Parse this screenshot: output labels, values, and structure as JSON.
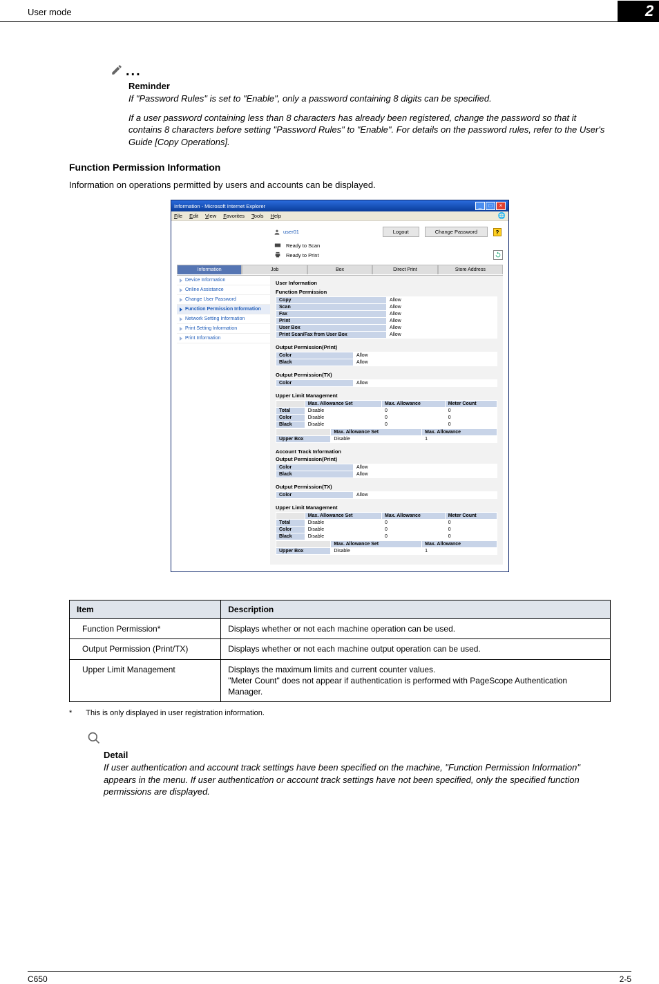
{
  "header": {
    "section": "User mode",
    "chapter": "2"
  },
  "reminder": {
    "label": "Reminder",
    "p1": "If \"Password Rules\" is set to \"Enable\", only a password containing 8 digits can be specified.",
    "p2": "If a user password containing less than 8 characters has already been registered, change the password so that it contains 8 characters before setting \"Password Rules\" to \"Enable\". For details on the password rules, refer to the User's Guide [Copy Operations]."
  },
  "section": {
    "title": "Function Permission Information",
    "intro": "Information on operations permitted by users and accounts can be displayed."
  },
  "ie": {
    "title": "Information - Microsoft Internet Explorer",
    "menu": [
      "File",
      "Edit",
      "View",
      "Favorites",
      "Tools",
      "Help"
    ],
    "user": "user01",
    "btn_logout": "Logout",
    "btn_pwd": "Change Password",
    "status_scan": "Ready to Scan",
    "status_print": "Ready to Print",
    "tabs": [
      "Information",
      "Job",
      "Box",
      "Direct Print",
      "Store Address"
    ],
    "sidebar": [
      "Device Information",
      "Online Assistance",
      "Change User Password",
      "Function Permission Information",
      "Network Setting Information",
      "Print Setting Information",
      "Print Information"
    ],
    "sidebar_active_idx": 3,
    "ui_user_info": "User Information",
    "ui_func_perm": "Function Permission",
    "func_rows": [
      [
        "Copy",
        "Allow"
      ],
      [
        "Scan",
        "Allow"
      ],
      [
        "Fax",
        "Allow"
      ],
      [
        "Print",
        "Allow"
      ],
      [
        "User Box",
        "Allow"
      ],
      [
        "Print Scan/Fax from User Box",
        "Allow"
      ]
    ],
    "ui_out_print": "Output Permission(Print)",
    "out_print_rows": [
      [
        "Color",
        "Allow"
      ],
      [
        "Black",
        "Allow"
      ]
    ],
    "ui_out_tx": "Output Permission(TX)",
    "out_tx_rows": [
      [
        "Color",
        "Allow"
      ]
    ],
    "ui_upper": "Upper Limit Management",
    "ul_headers": [
      "",
      "Max. Allowance Set",
      "Max. Allowance",
      "Meter Count"
    ],
    "ul_rows": [
      [
        "Total",
        "Disable",
        "0",
        "0"
      ],
      [
        "Color",
        "Disable",
        "0",
        "0"
      ],
      [
        "Black",
        "Disable",
        "0",
        "0"
      ]
    ],
    "ul2_headers": [
      "",
      "Max. Allowance Set",
      "Max. Allowance"
    ],
    "ul2_row": [
      "Upper Box",
      "Disable",
      "1"
    ],
    "ui_account": "Account Track Information"
  },
  "table": {
    "h1": "Item",
    "h2": "Description",
    "rows": [
      [
        "Function Permission*",
        "Displays whether or not each machine operation can be used."
      ],
      [
        "Output Permission (Print/TX)",
        "Displays whether or not each machine output operation can be used."
      ],
      [
        "Upper Limit Management",
        "Displays the maximum limits and current counter values.\n\"Meter Count\" does not appear if authentication is performed with PageScope Authentication Manager."
      ]
    ]
  },
  "footnote": {
    "mark": "*",
    "text": "This is only displayed in user registration information."
  },
  "detail": {
    "label": "Detail",
    "text": "If user authentication and account track settings have been specified on the machine, \"Function Permission Information\" appears in the menu. If user authentication or account track settings have not been specified, only the specified function permissions are displayed."
  },
  "footer": {
    "left": "C650",
    "right": "2-5"
  }
}
